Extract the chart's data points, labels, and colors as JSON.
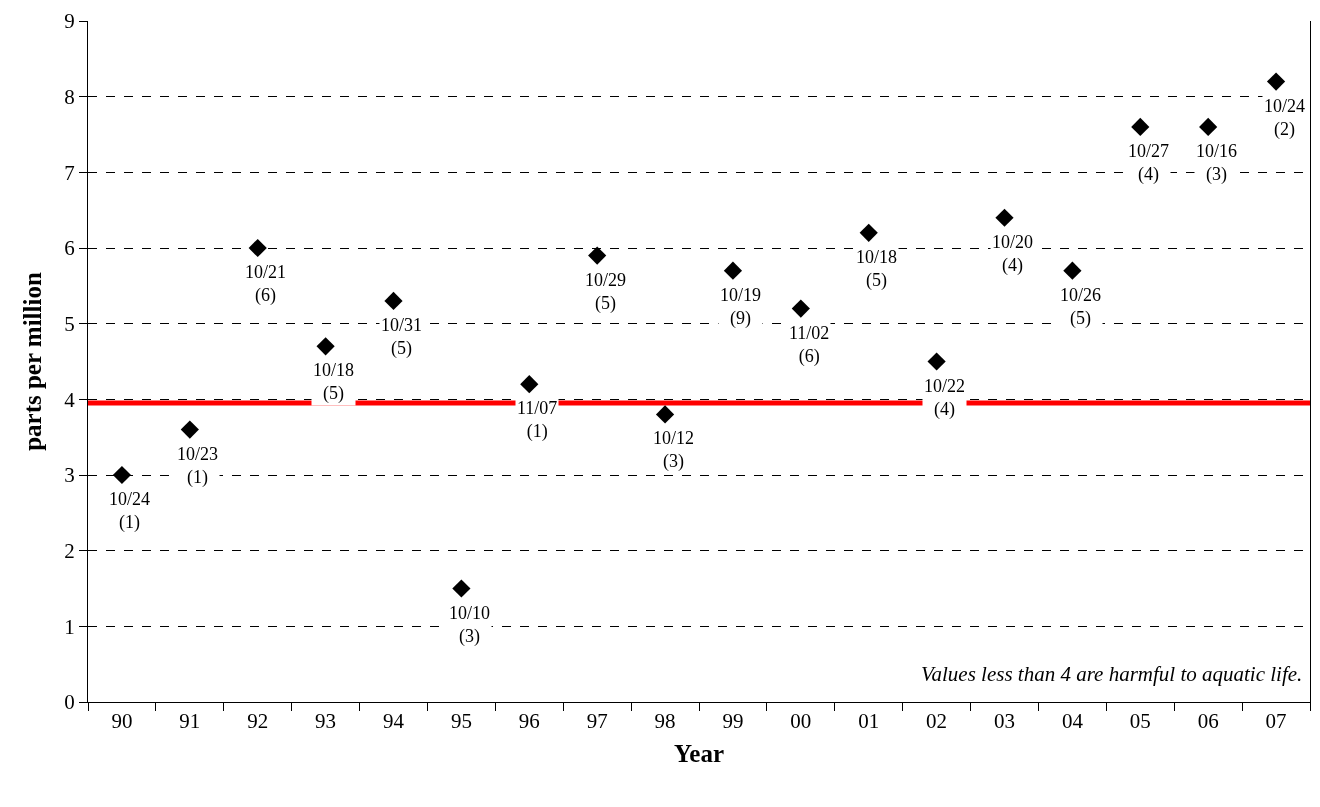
{
  "chart_data": {
    "type": "scatter",
    "xlabel": "Year",
    "ylabel": "parts per million",
    "categories": [
      "90",
      "91",
      "92",
      "93",
      "94",
      "95",
      "96",
      "97",
      "98",
      "99",
      "00",
      "01",
      "02",
      "03",
      "04",
      "05",
      "06",
      "07"
    ],
    "values": [
      3.0,
      3.6,
      6.0,
      4.7,
      5.3,
      1.5,
      4.2,
      5.9,
      3.8,
      5.7,
      5.2,
      6.2,
      4.5,
      6.4,
      5.7,
      7.6,
      7.6,
      8.2
    ],
    "value_labels": [
      "10/24\n(1)",
      "10/23\n(1)",
      "10/21\n(6)",
      "10/18\n(5)",
      "10/31\n(5)",
      "10/10\n(3)",
      "11/07\n(1)",
      "10/29\n(5)",
      "10/12\n(3)",
      "10/19\n(9)",
      "11/02\n(6)",
      "10/18\n(5)",
      "10/22\n(4)",
      "10/20\n(4)",
      "10/26\n(5)",
      "10/27\n(4)",
      "10/16\n(3)",
      "10/24\n(2)"
    ],
    "color": "#000000",
    "marker": "diamond",
    "ylim": [
      0,
      9
    ],
    "yticks": [
      0,
      1,
      2,
      3,
      4,
      5,
      6,
      7,
      8,
      9
    ],
    "grid": "y",
    "line_style": "dashed",
    "ref_lines": [
      {
        "axis": "y",
        "value": 3.95,
        "color": "#ff0000",
        "line_style": "solid"
      }
    ],
    "annotations": [
      "Values less than 4 are harmful to aquatic life."
    ]
  }
}
